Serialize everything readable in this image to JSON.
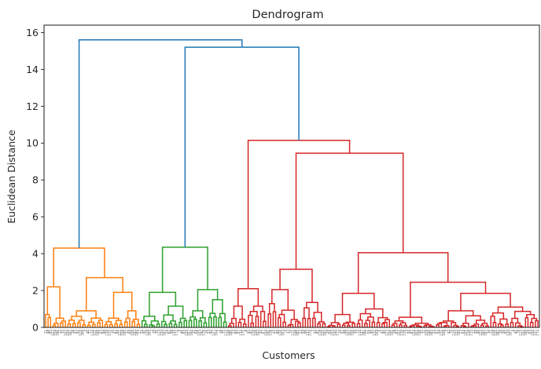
{
  "chart_data": {
    "type": "dendrogram",
    "title": "Dendrogram",
    "xlabel": "Customers",
    "ylabel": "Euclidean Distance",
    "ylim": [
      0,
      16.4
    ],
    "yticks": [
      0,
      2,
      4,
      6,
      8,
      10,
      12,
      14,
      16
    ],
    "grid": false,
    "colors": {
      "link_above_threshold": "#1f77b4",
      "cluster_orange": "#ff7f0e",
      "cluster_green": "#2ca02c",
      "cluster_red": "#d62728"
    },
    "leaf_count": 200,
    "top_merges": [
      {
        "height": 15.6,
        "left": "orange-cluster",
        "right": "green-red-merge"
      },
      {
        "height": 15.2,
        "left": "green-cluster",
        "right": "red-cluster"
      },
      {
        "height": 4.3,
        "cluster": "orange"
      },
      {
        "height": 4.35,
        "cluster": "green"
      },
      {
        "height": 10.15,
        "cluster": "red"
      }
    ],
    "clusters": [
      {
        "name": "orange",
        "color": "#ff7f0e",
        "leaves": 39,
        "root_height": 4.3
      },
      {
        "name": "green",
        "color": "#2ca02c",
        "leaves": 35,
        "root_height": 4.35
      },
      {
        "name": "red",
        "color": "#d62728",
        "leaves": 126,
        "root_height": 10.15
      }
    ]
  }
}
